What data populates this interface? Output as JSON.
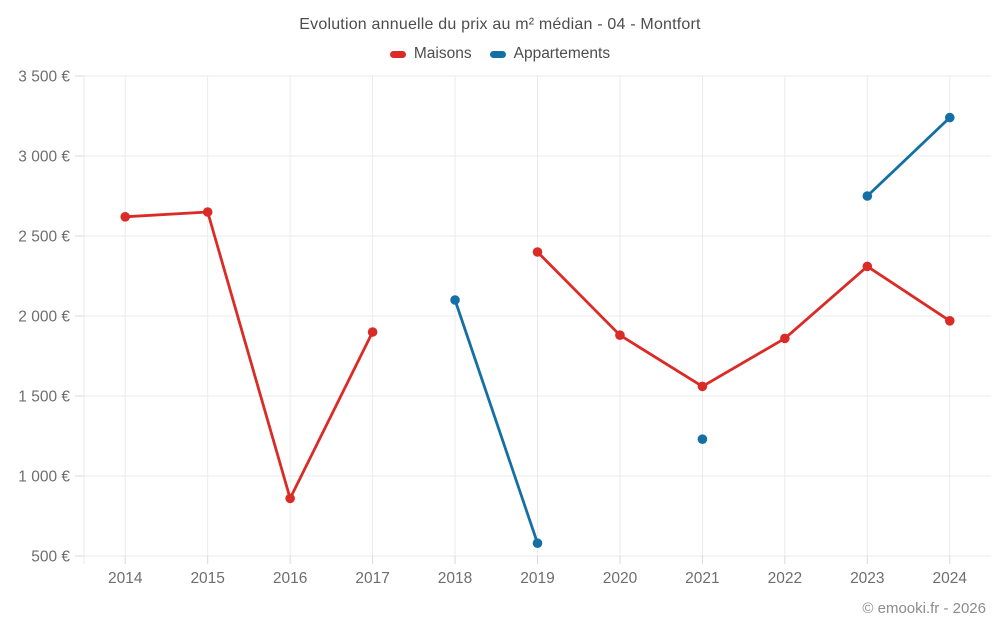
{
  "page": {
    "title": "Evolution annuelle du prix au m² médian - 04 - Montfort",
    "footer": "© emooki.fr - 2026"
  },
  "legend": [
    {
      "label": "Maisons",
      "color": "#db2b27"
    },
    {
      "label": "Appartements",
      "color": "#1470a4"
    }
  ],
  "chart_data": {
    "type": "line",
    "title": "Evolution annuelle du prix au m² médian - 04 - Montfort",
    "categories": [
      "2014",
      "2015",
      "2016",
      "2017",
      "2018",
      "2019",
      "2020",
      "2021",
      "2022",
      "2023",
      "2024"
    ],
    "series": [
      {
        "name": "Maisons",
        "color": "#db2b27",
        "values": [
          2620,
          2650,
          860,
          1900,
          null,
          2400,
          1880,
          1560,
          1860,
          2310,
          1970
        ]
      },
      {
        "name": "Appartements",
        "color": "#1470a4",
        "values": [
          null,
          null,
          null,
          null,
          2100,
          580,
          null,
          1230,
          null,
          2750,
          3240
        ]
      }
    ],
    "xlabel": "",
    "ylabel": "",
    "yticks": [
      500,
      1000,
      1500,
      2000,
      2500,
      3000,
      3500
    ],
    "ytick_suffix": " €",
    "ylim": [
      500,
      3500
    ],
    "grid": true,
    "legend_position": "top",
    "annotations": [
      "© emooki.fr - 2026"
    ],
    "colors": {
      "gridline": "#ebebeb",
      "tick": "#d9d9d9",
      "tick_label": "#6e6e6e",
      "title_text": "#4d4d4d",
      "footer_text": "#8c8c8c"
    }
  }
}
